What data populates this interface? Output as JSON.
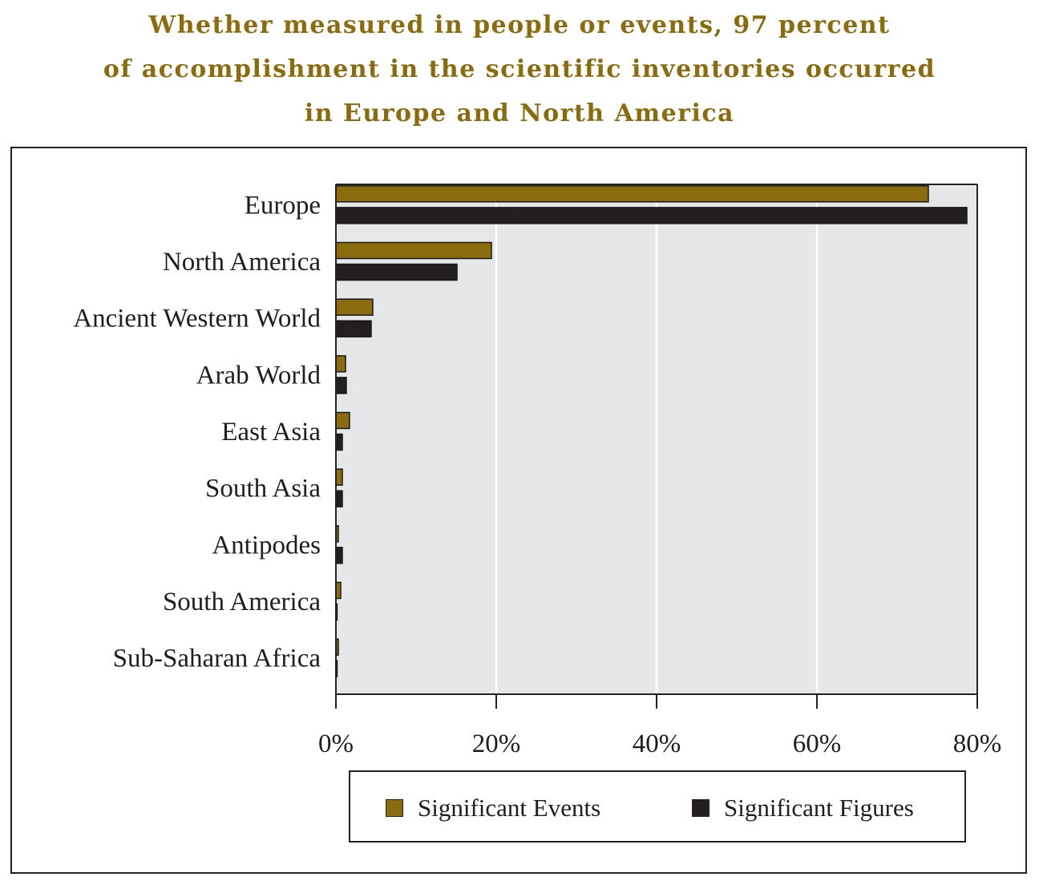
{
  "colors": {
    "events": "#8a6c0f",
    "figures": "#231f20",
    "plot_bg": "#e6e7e8",
    "gridline": "#ffffff",
    "title": "#8a6c0f"
  },
  "title_lines": [
    "Whether measured in people or events, 97 percent",
    "of accomplishment in the scientific inventories occurred",
    "in Europe and North America"
  ],
  "chart_data": {
    "type": "bar",
    "orientation": "horizontal",
    "title": "Whether measured in people or events, 97 percent of accomplishment in the scientific inventories occurred in Europe and North America",
    "xlabel": "",
    "ylabel": "",
    "xlim": [
      0,
      80
    ],
    "x_unit": "%",
    "x_ticks": [
      "0%",
      "20%",
      "40%",
      "60%",
      "80%"
    ],
    "grid": "vertical",
    "legend_position": "bottom",
    "categories": [
      "Europe",
      "North America",
      "Ancient Western World",
      "Arab World",
      "East Asia",
      "South Asia",
      "Antipodes",
      "South America",
      "Sub-Saharan Africa"
    ],
    "series": [
      {
        "name": "Significant Events",
        "values": [
          73.9,
          19.4,
          4.6,
          1.2,
          1.7,
          0.8,
          0.3,
          0.6,
          0.3
        ]
      },
      {
        "name": "Significant Figures",
        "values": [
          78.7,
          15.1,
          4.4,
          1.3,
          0.8,
          0.8,
          0.8,
          0.1,
          0.1
        ]
      }
    ]
  }
}
